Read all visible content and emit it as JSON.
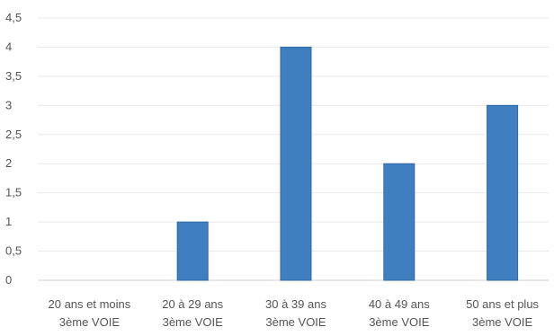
{
  "chart_data": {
    "type": "bar",
    "categories": [
      [
        "20 ans et moins",
        "3ème VOIE"
      ],
      [
        "20 à 29 ans",
        "3ème VOIE"
      ],
      [
        "30 à 39 ans",
        "3ème VOIE"
      ],
      [
        "40 à 49 ans",
        "3ème VOIE"
      ],
      [
        "50 ans et plus",
        "3ème VOIE"
      ]
    ],
    "values": [
      0,
      1,
      4,
      2,
      3
    ],
    "y_ticks": [
      "0",
      "0,5",
      "1",
      "1,5",
      "2",
      "2,5",
      "3",
      "3,5",
      "4",
      "4,5"
    ],
    "ylim": [
      0,
      4.5
    ],
    "title": "",
    "xlabel": "",
    "ylabel": "",
    "grid": true,
    "bar_color": "#3f7fbf",
    "bar_edge_color": "#2f68a5"
  }
}
